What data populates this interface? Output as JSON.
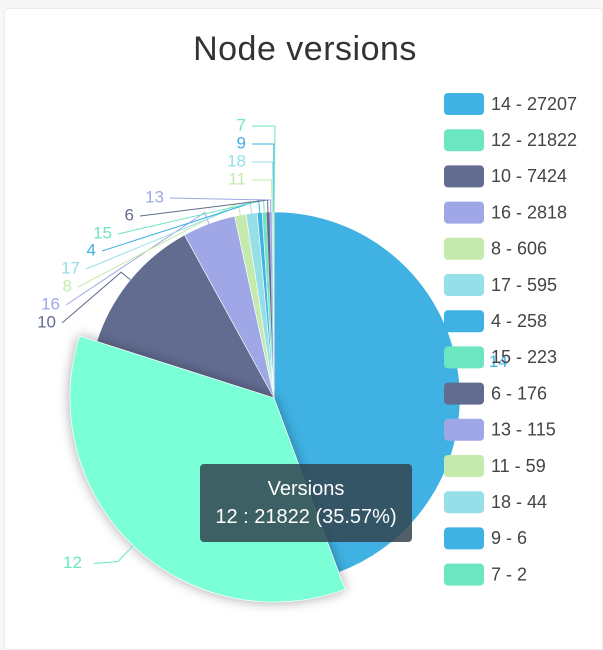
{
  "chart_data": {
    "type": "pie",
    "title": "Node versions",
    "series_name": "Versions",
    "slices": [
      {
        "label": "14",
        "value": 27207,
        "color": "#3fb1e3"
      },
      {
        "label": "12",
        "value": 21822,
        "color": "#6be6c1"
      },
      {
        "label": "10",
        "value": 7424,
        "color": "#626c91"
      },
      {
        "label": "16",
        "value": 2818,
        "color": "#a0a7e6"
      },
      {
        "label": "8",
        "value": 606,
        "color": "#c4ebad"
      },
      {
        "label": "17",
        "value": 595,
        "color": "#96dee8"
      },
      {
        "label": "4",
        "value": 258,
        "color": "#3fb1e3"
      },
      {
        "label": "15",
        "value": 223,
        "color": "#6be6c1"
      },
      {
        "label": "6",
        "value": 176,
        "color": "#626c91"
      },
      {
        "label": "13",
        "value": 115,
        "color": "#a0a7e6"
      },
      {
        "label": "11",
        "value": 59,
        "color": "#c4ebad"
      },
      {
        "label": "18",
        "value": 44,
        "color": "#96dee8"
      },
      {
        "label": "9",
        "value": 6,
        "color": "#3fb1e3"
      },
      {
        "label": "7",
        "value": 2,
        "color": "#6be6c1"
      }
    ],
    "legend_items": [
      "14 - 27207",
      "12 - 21822",
      "10 - 7424",
      "16 - 2818",
      "8 - 606",
      "17 - 595",
      "4 - 258",
      "15 - 223",
      "6 - 176",
      "13 - 115",
      "11 - 59",
      "18 - 44",
      "9 - 6",
      "7 - 2"
    ],
    "legend_placement": "right",
    "highlighted": "12",
    "highlight_color": "#7affd6"
  },
  "tooltip": {
    "title": "Versions",
    "text": "12 : 21822 (35.57%)"
  }
}
